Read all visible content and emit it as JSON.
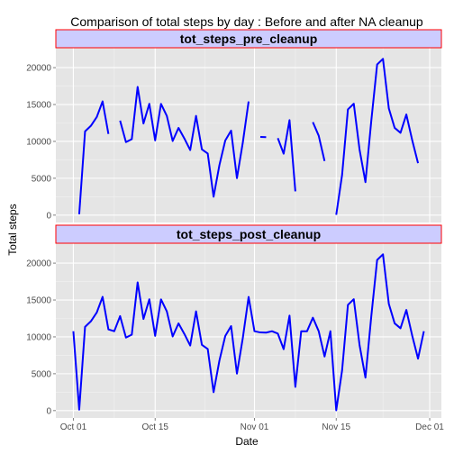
{
  "chart_data": {
    "type": "line",
    "title": "Comparison of total steps by day : Before and after NA cleanup",
    "xlabel": "Date",
    "ylabel": "Total steps",
    "xlim": [
      "2012-09-28",
      "2012-12-03"
    ],
    "x_ticks": [
      "Oct 01",
      "Oct 15",
      "Nov 01",
      "Nov 15",
      "Dec 01"
    ],
    "x_tick_dates": [
      "2012-10-01",
      "2012-10-15",
      "2012-11-01",
      "2012-11-15",
      "2012-12-01"
    ],
    "ylim": [
      -1000,
      22700
    ],
    "y_ticks": [
      0,
      5000,
      10000,
      15000,
      20000
    ],
    "line_color": "#0000ff",
    "strip_fill": "#ccccff",
    "strip_border": "#ff0000",
    "panel_background": "#e5e5e5",
    "grid": true,
    "dates": [
      "2012-10-01",
      "2012-10-02",
      "2012-10-03",
      "2012-10-04",
      "2012-10-05",
      "2012-10-06",
      "2012-10-07",
      "2012-10-08",
      "2012-10-09",
      "2012-10-10",
      "2012-10-11",
      "2012-10-12",
      "2012-10-13",
      "2012-10-14",
      "2012-10-15",
      "2012-10-16",
      "2012-10-17",
      "2012-10-18",
      "2012-10-19",
      "2012-10-20",
      "2012-10-21",
      "2012-10-22",
      "2012-10-23",
      "2012-10-24",
      "2012-10-25",
      "2012-10-26",
      "2012-10-27",
      "2012-10-28",
      "2012-10-29",
      "2012-10-30",
      "2012-10-31",
      "2012-11-01",
      "2012-11-02",
      "2012-11-03",
      "2012-11-04",
      "2012-11-05",
      "2012-11-06",
      "2012-11-07",
      "2012-11-08",
      "2012-11-09",
      "2012-11-10",
      "2012-11-11",
      "2012-11-12",
      "2012-11-13",
      "2012-11-14",
      "2012-11-15",
      "2012-11-16",
      "2012-11-17",
      "2012-11-18",
      "2012-11-19",
      "2012-11-20",
      "2012-11-21",
      "2012-11-22",
      "2012-11-23",
      "2012-11-24",
      "2012-11-25",
      "2012-11-26",
      "2012-11-27",
      "2012-11-28",
      "2012-11-29",
      "2012-11-30"
    ],
    "panels": [
      {
        "label": "tot_steps_pre_cleanup",
        "values": [
          null,
          126,
          11352,
          12116,
          13294,
          15420,
          11015,
          null,
          12811,
          9900,
          10304,
          17382,
          12426,
          15098,
          10139,
          15084,
          13452,
          10056,
          11829,
          10395,
          8821,
          13460,
          8918,
          8355,
          2492,
          6778,
          10119,
          11458,
          5018,
          9819,
          15414,
          null,
          10600,
          10571,
          null,
          10439,
          8334,
          12883,
          3219,
          null,
          null,
          12608,
          10765,
          7336,
          null,
          41,
          5441,
          14339,
          15110,
          8841,
          4472,
          12787,
          20427,
          21194,
          14478,
          11834,
          11162,
          13646,
          10183,
          7047,
          null
        ]
      },
      {
        "label": "tot_steps_post_cleanup",
        "values": [
          10766,
          126,
          11352,
          12116,
          13294,
          15420,
          11015,
          10766,
          12811,
          9900,
          10304,
          17382,
          12426,
          15098,
          10139,
          15084,
          13452,
          10056,
          11829,
          10395,
          8821,
          13460,
          8918,
          8355,
          2492,
          6778,
          10119,
          11458,
          5018,
          9819,
          15414,
          10766,
          10600,
          10571,
          10766,
          10439,
          8334,
          12883,
          3219,
          10766,
          10766,
          12608,
          10765,
          7336,
          10766,
          41,
          5441,
          14339,
          15110,
          8841,
          4472,
          12787,
          20427,
          21194,
          14478,
          11834,
          11162,
          13646,
          10183,
          7047,
          10766
        ]
      }
    ]
  }
}
